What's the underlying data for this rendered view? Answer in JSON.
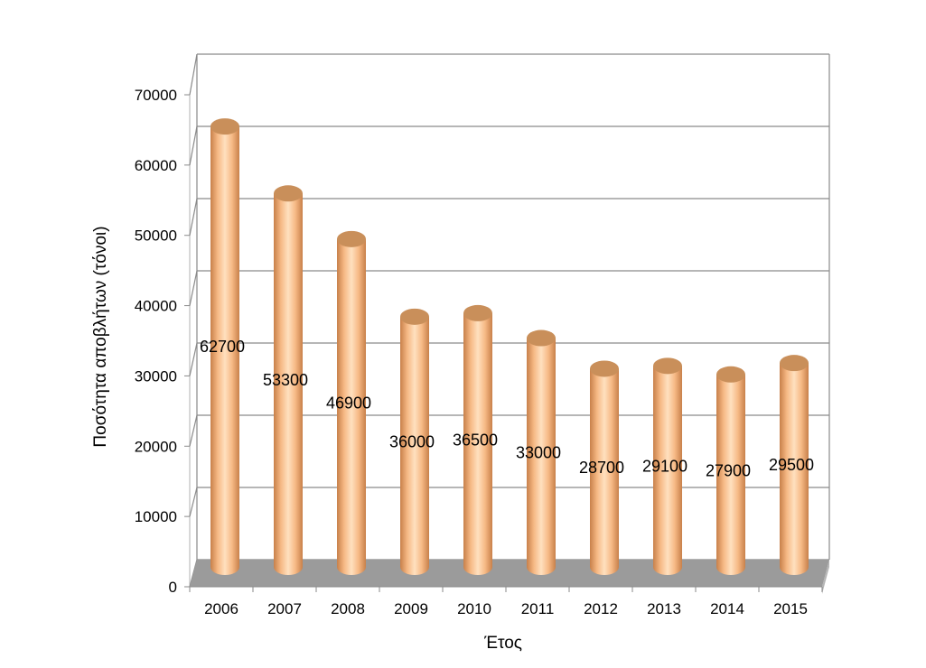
{
  "chart_data": {
    "type": "bar",
    "title": "",
    "xlabel": "Έτος",
    "ylabel": "Ποσότητα αποβλήτων (τόνοι)",
    "ylim": [
      0,
      70000
    ],
    "yticks": [
      "0",
      "10000",
      "20000",
      "30000",
      "40000",
      "50000",
      "60000",
      "70000"
    ],
    "categories": [
      "2006",
      "2007",
      "2008",
      "2009",
      "2010",
      "2011",
      "2012",
      "2013",
      "2014",
      "2015"
    ],
    "values": [
      62700,
      53300,
      46900,
      36000,
      36500,
      33000,
      28700,
      29100,
      27900,
      29500
    ],
    "data_labels": [
      "62700",
      "53300",
      "46900",
      "36000",
      "36500",
      "33000",
      "28700",
      "29100",
      "27900",
      "29500"
    ],
    "grid": true,
    "legend": "none",
    "style": "3d-cylinder",
    "colors": {
      "bar": "#f2b27e",
      "bar_top": "#c98f5a",
      "floor": "#9b9b9b",
      "grid": "#8a8a8a"
    }
  }
}
